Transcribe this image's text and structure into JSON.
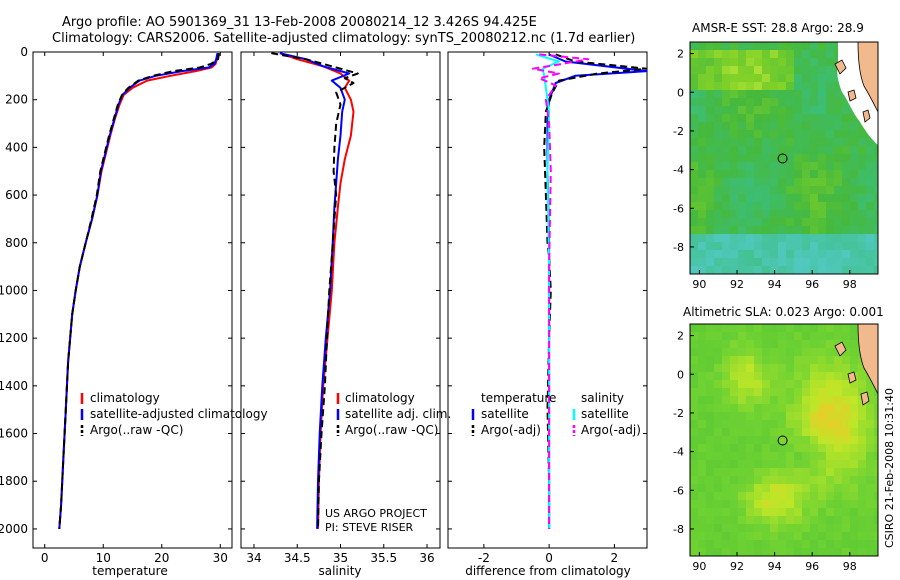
{
  "title_line1": "Argo profile: AO 5901369_31 13-Feb-2008 20080214_12 3.426S 94.425E",
  "title_line2": "Climatology: CARS2006. Satellite-adjusted climatology: synTS_20080212.nc (1.7d earlier)",
  "credit": "CSIRO 21-Feb-2008 10:31:40",
  "project_line1": "US ARGO PROJECT",
  "project_line2": "PI: STEVE RISER",
  "colors": {
    "clim": "#ff0000",
    "sat": "#0000ff",
    "argo": "#000000",
    "sal_sat": "#00ffff",
    "sal_argo": "#ff00ff",
    "land": "#f2b98c"
  },
  "chart_data": [
    {
      "type": "line",
      "id": "temperature",
      "xlabel": "temperature",
      "ylabel": "",
      "xlim": [
        -2,
        32
      ],
      "ylim": [
        2080,
        0
      ],
      "xticks": [
        0,
        10,
        20,
        30
      ],
      "yticks": [
        0,
        200,
        400,
        600,
        800,
        1000,
        1200,
        1400,
        1600,
        1800,
        2000
      ],
      "legend": [
        "climatology",
        "satellite-adjusted climatology",
        "Argo(..raw -QC)"
      ],
      "series": [
        {
          "name": "climatology",
          "style": "solid",
          "color": "red",
          "x": [
            29.6,
            29.4,
            29.2,
            28.5,
            25.8,
            21.5,
            17.5,
            15.0,
            13.5,
            12.8,
            12.0,
            11.2,
            10.5,
            9.7,
            9.0,
            8.1,
            7.0,
            6.0,
            5.3,
            4.7,
            4.0,
            3.6,
            3.2,
            2.8,
            2.5
          ],
          "y": [
            5,
            30,
            50,
            65,
            80,
            100,
            120,
            150,
            180,
            220,
            280,
            350,
            420,
            500,
            600,
            700,
            800,
            900,
            1000,
            1100,
            1300,
            1500,
            1700,
            1900,
            2000
          ]
        },
        {
          "name": "satellite-adjusted climatology",
          "style": "solid",
          "color": "blue",
          "x": [
            29.5,
            29.3,
            29.0,
            28.0,
            23.5,
            19.0,
            16.2,
            14.5,
            13.3,
            12.6,
            11.9,
            11.1,
            10.4,
            9.6,
            9.0,
            8.1,
            7.0,
            6.0,
            5.3,
            4.7,
            4.0,
            3.6,
            3.2,
            2.8,
            2.5
          ],
          "y": [
            5,
            30,
            50,
            65,
            80,
            100,
            120,
            150,
            180,
            220,
            280,
            350,
            420,
            500,
            600,
            700,
            800,
            900,
            1000,
            1100,
            1300,
            1500,
            1700,
            1900,
            2000
          ]
        },
        {
          "name": "Argo(..raw -QC)",
          "style": "dashed",
          "color": "black",
          "x": [
            29.8,
            29.6,
            28.4,
            26.5,
            22.0,
            18.5,
            16.0,
            14.3,
            13.2,
            12.5,
            11.8,
            11.0,
            10.3,
            9.5,
            8.9,
            8.0,
            7.0,
            6.0,
            5.3,
            4.7,
            4.0,
            3.6,
            3.2,
            2.8,
            2.5
          ],
          "y": [
            5,
            30,
            50,
            65,
            80,
            100,
            120,
            150,
            180,
            220,
            280,
            350,
            420,
            500,
            600,
            700,
            800,
            900,
            1000,
            1100,
            1300,
            1500,
            1700,
            1900,
            2000
          ]
        }
      ]
    },
    {
      "type": "line",
      "id": "salinity",
      "xlabel": "salinity",
      "ylabel": "",
      "xlim": [
        33.85,
        36.15
      ],
      "ylim": [
        2080,
        0
      ],
      "xticks": [
        34,
        34.5,
        35,
        35.5,
        36
      ],
      "legend": [
        "climatology",
        "satellite adj. clim.",
        "Argo(..raw -QC)"
      ],
      "series": [
        {
          "name": "climatology",
          "style": "solid",
          "color": "red",
          "x": [
            34.3,
            34.5,
            34.8,
            35.0,
            35.1,
            35.05,
            35.12,
            35.15,
            35.12,
            35.05,
            35.0,
            34.97,
            34.93,
            34.9,
            34.85,
            34.8,
            34.77,
            34.75,
            34.74
          ],
          "y": [
            5,
            30,
            60,
            90,
            120,
            150,
            200,
            250,
            350,
            450,
            550,
            650,
            800,
            1000,
            1200,
            1400,
            1600,
            1800,
            2000
          ]
        },
        {
          "name": "satellite adj. clim.",
          "style": "solid",
          "color": "blue",
          "x": [
            34.3,
            34.6,
            34.8,
            35.1,
            34.9,
            35.0,
            35.05,
            35.02,
            35.0,
            34.97,
            34.95,
            34.93,
            34.91,
            34.88,
            34.83,
            34.79,
            34.76,
            34.74,
            34.73
          ],
          "y": [
            5,
            30,
            60,
            90,
            120,
            150,
            200,
            250,
            350,
            450,
            550,
            650,
            800,
            1000,
            1200,
            1400,
            1600,
            1800,
            2000
          ]
        },
        {
          "name": "Argo(..raw -QC)",
          "style": "dashed",
          "color": "black",
          "x": [
            34.2,
            34.6,
            34.9,
            35.2,
            35.05,
            35.15,
            34.95,
            35.0,
            34.95,
            34.93,
            34.92,
            34.95,
            34.93,
            34.9,
            34.87,
            34.85,
            34.82,
            34.78,
            34.75,
            34.74
          ],
          "y": [
            5,
            30,
            60,
            90,
            110,
            130,
            170,
            220,
            300,
            400,
            500,
            600,
            700,
            860,
            1000,
            1150,
            1400,
            1600,
            1800,
            2000
          ]
        }
      ]
    },
    {
      "type": "line",
      "id": "difference",
      "xlabel": "difference from climatology",
      "ylabel": "",
      "xlim": [
        -3.1,
        3
      ],
      "ylim": [
        2080,
        0
      ],
      "xticks": [
        -2,
        0,
        2
      ],
      "legend_titles": [
        "temperature",
        "salinity"
      ],
      "legend": [
        "satellite",
        "Argo(-adj)",
        "satellite",
        "Argo(-adj)"
      ],
      "series": [
        {
          "name": "temperature satellite",
          "style": "solid",
          "color": "blue",
          "x": [
            0.0,
            0.5,
            3.0,
            0.8,
            0.2,
            0.0,
            -0.05,
            -0.05,
            0.0,
            0.0,
            0.0,
            0.0
          ],
          "y": [
            10,
            40,
            80,
            100,
            130,
            200,
            300,
            500,
            800,
            1200,
            1600,
            2000
          ]
        },
        {
          "name": "temperature Argo(-adj)",
          "style": "dashed",
          "color": "black",
          "x": [
            0.2,
            0.8,
            3.0,
            1.5,
            0.3,
            0.1,
            -0.1,
            -0.15,
            -0.1,
            -0.05,
            0.0,
            0.05,
            0.0,
            -0.05,
            0.0,
            0.0
          ],
          "y": [
            10,
            40,
            70,
            90,
            120,
            170,
            250,
            400,
            600,
            800,
            860,
            1000,
            1200,
            1500,
            1800,
            2000
          ]
        },
        {
          "name": "salinity satellite",
          "style": "solid",
          "color": "cyan",
          "x": [
            -0.4,
            0.3,
            -0.2,
            -0.15,
            -0.1,
            0.0,
            -0.05,
            0.0,
            0.0,
            0.0
          ],
          "y": [
            10,
            40,
            70,
            100,
            150,
            250,
            500,
            900,
            1500,
            2000
          ]
        },
        {
          "name": "salinity Argo(-adj)",
          "style": "dashed",
          "color": "magenta",
          "x": [
            -0.3,
            1.2,
            0.4,
            -0.5,
            0.3,
            -0.3,
            0.2,
            -0.1,
            0.0,
            0.05,
            0.0,
            0.0
          ],
          "y": [
            10,
            30,
            50,
            70,
            90,
            110,
            140,
            200,
            300,
            500,
            900,
            2000
          ]
        }
      ]
    },
    {
      "type": "heatmap",
      "id": "sst",
      "title": "AMSR-E SST: 28.8  Argo: 28.9",
      "xlim": [
        89.5,
        99.5
      ],
      "ylim": [
        -9.4,
        2.6
      ],
      "xticks": [
        90,
        92,
        94,
        96,
        98
      ],
      "yticks": [
        2,
        0,
        -2,
        -4,
        -6,
        -8
      ],
      "marker": {
        "lon": 94.425,
        "lat": -3.426
      }
    },
    {
      "type": "heatmap",
      "id": "sla",
      "title": "Altimetric SLA: 0.023  Argo: 0.001",
      "xlim": [
        89.5,
        99.5
      ],
      "ylim": [
        -9.4,
        2.6
      ],
      "xticks": [
        90,
        92,
        94,
        96,
        98
      ],
      "yticks": [
        2,
        0,
        -2,
        -4,
        -6,
        -8
      ],
      "marker": {
        "lon": 94.425,
        "lat": -3.426
      }
    }
  ]
}
